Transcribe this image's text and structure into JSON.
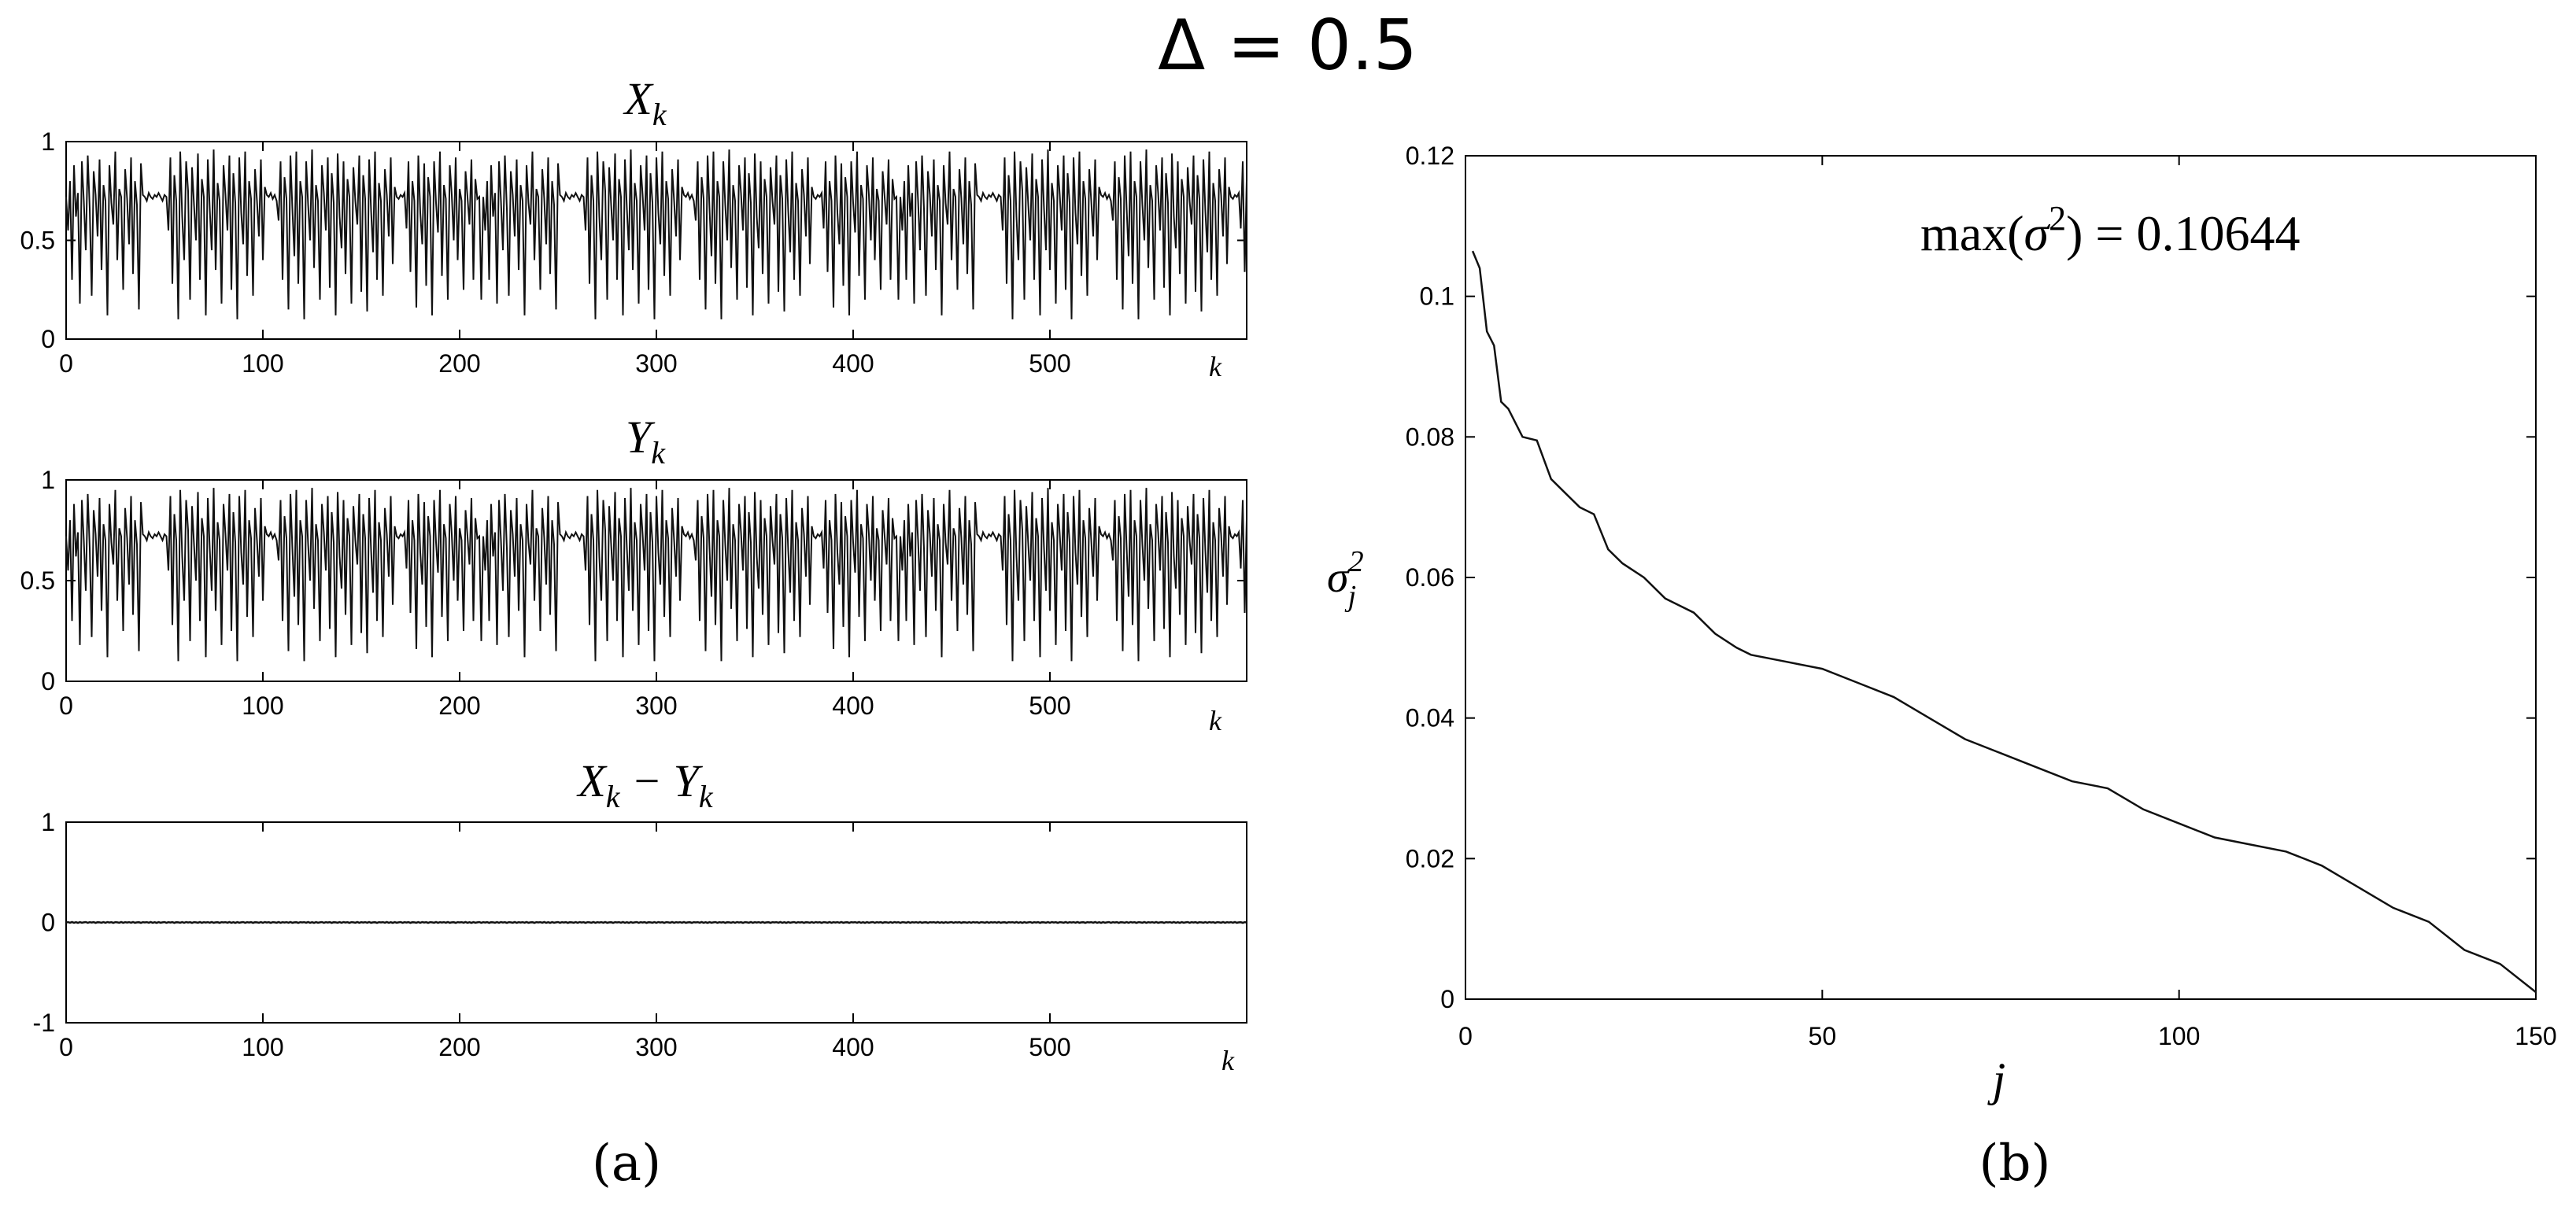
{
  "figure_title": "Δ = 0.5",
  "captions": {
    "a": "(a)",
    "b": "(b)"
  },
  "colors": {
    "line": "#111111",
    "axis": "#000000",
    "background": "#ffffff"
  },
  "chart_data": [
    {
      "type": "line",
      "panel": "a",
      "title": "X_k",
      "title_main": "X",
      "title_sub": "k",
      "xlabel": "k",
      "ylabel": "",
      "xlim": [
        0,
        600
      ],
      "ylim": [
        0,
        1
      ],
      "x_ticks": [
        "0",
        "100",
        "200",
        "300",
        "400",
        "500"
      ],
      "y_ticks": [
        "0",
        "0.5",
        "1"
      ],
      "series": [
        {
          "values": [
            0.72,
            0.55,
            0.8,
            0.3,
            0.88,
            0.62,
            0.74,
            0.18,
            0.9,
            0.7,
            0.45,
            0.93,
            0.66,
            0.22,
            0.85,
            0.73,
            0.52,
            0.91,
            0.35,
            0.78,
            0.7,
            0.12,
            0.88,
            0.69,
            0.58,
            0.95,
            0.4,
            0.76,
            0.72,
            0.25,
            0.86,
            0.71,
            0.48,
            0.92,
            0.33,
            0.8,
            0.68,
            0.15,
            0.89,
            0.73,
            0.72,
            0.7,
            0.74,
            0.72,
            0.71,
            0.73,
            0.72,
            0.74,
            0.72,
            0.7,
            0.73,
            0.72,
            0.55,
            0.92,
            0.28,
            0.83,
            0.7,
            0.1,
            0.95,
            0.62,
            0.4,
            0.9,
            0.75,
            0.2,
            0.87,
            0.68,
            0.5,
            0.94,
            0.3,
            0.81,
            0.72,
            0.12,
            0.91,
            0.66,
            0.45,
            0.96,
            0.35,
            0.79,
            0.7,
            0.18,
            0.88,
            0.73,
            0.55,
            0.93,
            0.25,
            0.84,
            0.69,
            0.1,
            0.92,
            0.64,
            0.48,
            0.95,
            0.32,
            0.8,
            0.71,
            0.22,
            0.86,
            0.7,
            0.52,
            0.91,
            0.4,
            0.77,
            0.73,
            0.72,
            0.74,
            0.71,
            0.73,
            0.7,
            0.6,
            0.9,
            0.3,
            0.82,
            0.71,
            0.15,
            0.93,
            0.66,
            0.42,
            0.95,
            0.28,
            0.8,
            0.72,
            0.1,
            0.9,
            0.68,
            0.5,
            0.96,
            0.36,
            0.78,
            0.7,
            0.2,
            0.88,
            0.74,
            0.55,
            0.92,
            0.26,
            0.84,
            0.69,
            0.12,
            0.94,
            0.62,
            0.46,
            0.9,
            0.33,
            0.81,
            0.72,
            0.18,
            0.87,
            0.7,
            0.58,
            0.93,
            0.24,
            0.83,
            0.71,
            0.14,
            0.91,
            0.65,
            0.44,
            0.95,
            0.3,
            0.79,
            0.7,
            0.22,
            0.86,
            0.73,
            0.52,
            0.92,
            0.38,
            0.77,
            0.72,
            0.71,
            0.73,
            0.72,
            0.74,
            0.56,
            0.9,
            0.34,
            0.8,
            0.7,
            0.16,
            0.93,
            0.64,
            0.48,
            0.89,
            0.27,
            0.82,
            0.72,
            0.12,
            0.9,
            0.69,
            0.54,
            0.95,
            0.32,
            0.78,
            0.71,
            0.2,
            0.88,
            0.73,
            0.5,
            0.92,
            0.4,
            0.76,
            0.7,
            0.25,
            0.85,
            0.72,
            0.58,
            0.91,
            0.3,
            0.81,
            0.71,
            0.72,
            0.2
          ]
        }
      ]
    },
    {
      "type": "line",
      "panel": "a",
      "title": "Y_k",
      "title_main": "Y",
      "title_sub": "k",
      "xlabel": "k",
      "ylabel": "",
      "xlim": [
        0,
        600
      ],
      "ylim": [
        0,
        1
      ],
      "x_ticks": [
        "0",
        "100",
        "200",
        "300",
        "400",
        "500"
      ],
      "y_ticks": [
        "0",
        "0.5",
        "1"
      ],
      "series": [
        {
          "values": [
            0.72,
            0.55,
            0.8,
            0.3,
            0.88,
            0.62,
            0.74,
            0.18,
            0.9,
            0.7,
            0.45,
            0.93,
            0.66,
            0.22,
            0.85,
            0.73,
            0.52,
            0.91,
            0.35,
            0.78,
            0.7,
            0.12,
            0.88,
            0.69,
            0.58,
            0.95,
            0.4,
            0.76,
            0.72,
            0.25,
            0.86,
            0.71,
            0.48,
            0.92,
            0.33,
            0.8,
            0.68,
            0.15,
            0.89,
            0.73,
            0.72,
            0.7,
            0.74,
            0.72,
            0.71,
            0.73,
            0.72,
            0.74,
            0.72,
            0.7,
            0.73,
            0.72,
            0.55,
            0.92,
            0.28,
            0.83,
            0.7,
            0.1,
            0.95,
            0.62,
            0.4,
            0.9,
            0.75,
            0.2,
            0.87,
            0.68,
            0.5,
            0.94,
            0.3,
            0.81,
            0.72,
            0.12,
            0.91,
            0.66,
            0.45,
            0.96,
            0.35,
            0.79,
            0.7,
            0.18,
            0.88,
            0.73,
            0.55,
            0.93,
            0.25,
            0.84,
            0.69,
            0.1,
            0.92,
            0.64,
            0.48,
            0.95,
            0.32,
            0.8,
            0.71,
            0.22,
            0.86,
            0.7,
            0.52,
            0.91,
            0.4,
            0.77,
            0.73,
            0.72,
            0.74,
            0.71,
            0.73,
            0.7,
            0.6,
            0.9,
            0.3,
            0.82,
            0.71,
            0.15,
            0.93,
            0.66,
            0.42,
            0.95,
            0.28,
            0.8,
            0.72,
            0.1,
            0.9,
            0.68,
            0.5,
            0.96,
            0.36,
            0.78,
            0.7,
            0.2,
            0.88,
            0.74,
            0.55,
            0.92,
            0.26,
            0.84,
            0.69,
            0.12,
            0.94,
            0.62,
            0.46,
            0.9,
            0.33,
            0.81,
            0.72,
            0.18,
            0.87,
            0.7,
            0.58,
            0.93,
            0.24,
            0.83,
            0.71,
            0.14,
            0.91,
            0.65,
            0.44,
            0.95,
            0.3,
            0.79,
            0.7,
            0.22,
            0.86,
            0.73,
            0.52,
            0.92,
            0.38,
            0.77,
            0.72,
            0.71,
            0.73,
            0.72,
            0.74,
            0.56,
            0.9,
            0.34,
            0.8,
            0.7,
            0.16,
            0.93,
            0.64,
            0.48,
            0.89,
            0.27,
            0.82,
            0.72,
            0.12,
            0.9,
            0.69,
            0.54,
            0.95,
            0.32,
            0.78,
            0.71,
            0.2,
            0.88,
            0.73,
            0.5,
            0.92,
            0.4,
            0.76,
            0.7,
            0.25,
            0.85,
            0.72,
            0.58,
            0.91,
            0.3,
            0.81,
            0.71,
            0.72,
            0.2
          ]
        }
      ]
    },
    {
      "type": "line",
      "panel": "a",
      "title": "X_k − Y_k",
      "title_parts": [
        "X",
        "k",
        " − Y",
        "k"
      ],
      "xlabel": "k",
      "ylabel": "",
      "xlim": [
        0,
        600
      ],
      "ylim": [
        -1,
        1
      ],
      "x_ticks": [
        "0",
        "100",
        "200",
        "300",
        "400",
        "500"
      ],
      "y_ticks": [
        "-1",
        "0",
        "1"
      ],
      "series": [
        {
          "values": [
            0.0,
            0.003,
            -0.002,
            0.004,
            -0.003,
            0.002,
            -0.004,
            0.003,
            -0.002,
            0.001,
            0.004,
            -0.003,
            0.002,
            -0.001,
            0.003,
            -0.004,
            0.002,
            0.001,
            -0.002,
            0.003,
            -0.003,
            0.004,
            -0.001,
            0.002,
            -0.004,
            0.003,
            0.001,
            -0.002,
            0.004,
            -0.003,
            0.002,
            -0.001,
            0.003,
            -0.002,
            0.004,
            -0.003,
            0.001,
            0.002,
            -0.004,
            0.003
          ]
        }
      ]
    },
    {
      "type": "line",
      "panel": "b",
      "title": "",
      "annotation": "max(σ²) = 0.10644",
      "annotation_func": "max(",
      "annotation_sym": "σ",
      "annotation_sup": "2",
      "annotation_rest": ") = 0.10644",
      "xlabel": "j",
      "ylabel": "σ_j^2",
      "ylabel_main": "σ",
      "ylabel_sup": "2",
      "ylabel_sub": "j",
      "xlim": [
        0,
        150
      ],
      "ylim": [
        0,
        0.12
      ],
      "x_ticks": [
        "0",
        "50",
        "100",
        "150"
      ],
      "y_ticks": [
        "0",
        "0.02",
        "0.04",
        "0.06",
        "0.08",
        "0.1",
        "0.12"
      ],
      "series": [
        {
          "x": [
            1,
            2,
            3,
            4,
            5,
            6,
            8,
            10,
            12,
            14,
            16,
            18,
            20,
            22,
            25,
            28,
            30,
            32,
            35,
            38,
            40,
            45,
            50,
            55,
            60,
            65,
            70,
            75,
            80,
            85,
            90,
            95,
            100,
            105,
            110,
            115,
            120,
            125,
            130,
            135,
            140,
            145,
            150
          ],
          "y": [
            0.10644,
            0.104,
            0.095,
            0.093,
            0.085,
            0.084,
            0.08,
            0.0795,
            0.074,
            0.072,
            0.07,
            0.069,
            0.064,
            0.062,
            0.06,
            0.057,
            0.056,
            0.055,
            0.052,
            0.05,
            0.049,
            0.048,
            0.047,
            0.045,
            0.043,
            0.04,
            0.037,
            0.035,
            0.033,
            0.031,
            0.03,
            0.027,
            0.025,
            0.023,
            0.022,
            0.021,
            0.019,
            0.016,
            0.013,
            0.011,
            0.007,
            0.005,
            0.001
          ]
        }
      ]
    }
  ]
}
